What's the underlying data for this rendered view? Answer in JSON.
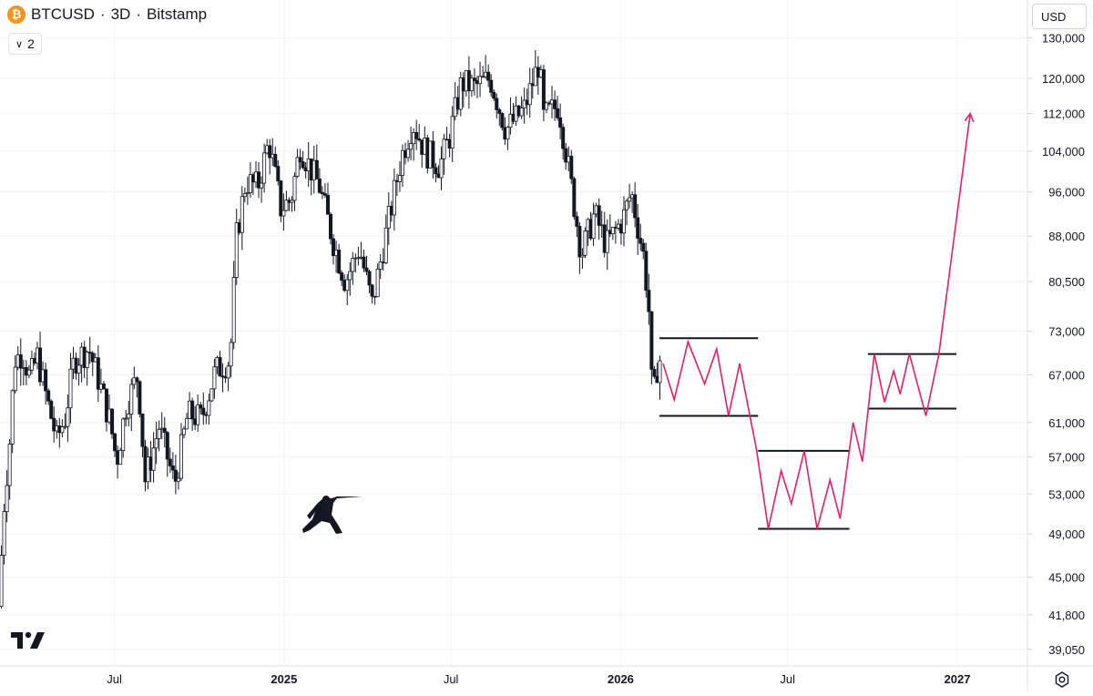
{
  "header": {
    "symbol": "BTCUSD",
    "interval": "3D",
    "exchange": "Bitstamp",
    "separator": "·",
    "coin_glyph": "₿",
    "coin_color": "#f7931a"
  },
  "legend_toggle": {
    "count": "2",
    "icon": "chevron-down-icon"
  },
  "currency": {
    "label": "USD"
  },
  "icons": {
    "logo": "tradingview-logo-icon",
    "settings": "settings-gear-icon",
    "drawing": "fencer-silhouette-icon"
  },
  "colors": {
    "candles": "#131722",
    "projection": "#e91e63",
    "levels": "#131722",
    "grid": "#f0f3fa"
  },
  "chart_data": {
    "type": "candlestick",
    "price_scale": "log",
    "y_tick_labels": [
      "130,000",
      "120,000",
      "112,000",
      "104,000",
      "96,000",
      "88,000",
      "80,500",
      "73,000",
      "67,000",
      "61,000",
      "57,000",
      "53,000",
      "49,000",
      "45,000",
      "41,800",
      "39,050"
    ],
    "y_ticks": [
      130000,
      120000,
      112000,
      104000,
      96000,
      88000,
      80500,
      73000,
      67000,
      61000,
      57000,
      53000,
      49000,
      45000,
      41800,
      39050
    ],
    "ylim": [
      37800,
      140000
    ],
    "x_tick_labels": [
      "Jul",
      "2025",
      "Jul",
      "2026",
      "Jul",
      "2027"
    ],
    "x_ticks": [
      "2024-07-01",
      "2025-01-01",
      "2025-07-01",
      "2026-01-01",
      "2026-07-01",
      "2027-01-01"
    ],
    "x_tick_bold": [
      false,
      true,
      false,
      true,
      false,
      true
    ],
    "xlim": [
      "2024-02-28",
      "2027-03-18"
    ],
    "price_path": [
      [
        "2024-02-28",
        42500
      ],
      [
        "2024-03-05",
        52000
      ],
      [
        "2024-03-12",
        60000
      ],
      [
        "2024-03-16",
        69000
      ],
      [
        "2024-03-25",
        70000
      ],
      [
        "2024-04-02",
        66500
      ],
      [
        "2024-04-10",
        69500
      ],
      [
        "2024-04-20",
        64000
      ],
      [
        "2024-05-01",
        59000
      ],
      [
        "2024-05-10",
        61500
      ],
      [
        "2024-05-20",
        69000
      ],
      [
        "2024-06-05",
        70500
      ],
      [
        "2024-06-15",
        66500
      ],
      [
        "2024-06-28",
        61000
      ],
      [
        "2024-07-05",
        56500
      ],
      [
        "2024-07-15",
        63000
      ],
      [
        "2024-07-28",
        67000
      ],
      [
        "2024-08-05",
        54500
      ],
      [
        "2024-08-20",
        60500
      ],
      [
        "2024-09-06",
        54000
      ],
      [
        "2024-09-20",
        62000
      ],
      [
        "2024-10-05",
        61500
      ],
      [
        "2024-10-20",
        67500
      ],
      [
        "2024-11-05",
        69000
      ],
      [
        "2024-11-12",
        88000
      ],
      [
        "2024-11-22",
        98000
      ],
      [
        "2024-12-05",
        97000
      ],
      [
        "2024-12-17",
        106000
      ],
      [
        "2024-12-30",
        93000
      ],
      [
        "2025-01-10",
        94500
      ],
      [
        "2025-01-20",
        105000
      ],
      [
        "2025-01-30",
        101000
      ],
      [
        "2025-02-10",
        97000
      ],
      [
        "2025-02-25",
        87000
      ],
      [
        "2025-03-10",
        80500
      ],
      [
        "2025-03-25",
        86000
      ],
      [
        "2025-04-08",
        77000
      ],
      [
        "2025-04-20",
        86000
      ],
      [
        "2025-05-10",
        103000
      ],
      [
        "2025-05-22",
        110000
      ],
      [
        "2025-06-05",
        104000
      ],
      [
        "2025-06-20",
        101000
      ],
      [
        "2025-07-01",
        107000
      ],
      [
        "2025-07-14",
        119000
      ],
      [
        "2025-07-28",
        118000
      ],
      [
        "2025-08-14",
        120000
      ],
      [
        "2025-08-31",
        108500
      ],
      [
        "2025-09-20",
        113000
      ],
      [
        "2025-10-06",
        124000
      ],
      [
        "2025-10-11",
        111000
      ],
      [
        "2025-10-27",
        114000
      ],
      [
        "2025-11-05",
        103000
      ],
      [
        "2025-11-21",
        85000
      ],
      [
        "2025-12-05",
        92000
      ],
      [
        "2025-12-18",
        86500
      ],
      [
        "2026-01-05",
        91000
      ],
      [
        "2026-01-14",
        96000
      ],
      [
        "2026-01-28",
        84000
      ],
      [
        "2026-02-02",
        76000
      ],
      [
        "2026-02-06",
        63000
      ],
      [
        "2026-02-12",
        69000
      ]
    ],
    "projection": [
      [
        "2026-02-16",
        68500
      ],
      [
        "2026-02-28",
        63800
      ],
      [
        "2026-03-15",
        71500
      ],
      [
        "2026-04-02",
        65800
      ],
      [
        "2026-04-15",
        70500
      ],
      [
        "2026-04-28",
        61800
      ],
      [
        "2026-05-10",
        68500
      ],
      [
        "2026-05-28",
        58000
      ],
      [
        "2026-06-10",
        49500
      ],
      [
        "2026-06-24",
        55500
      ],
      [
        "2026-07-05",
        52000
      ],
      [
        "2026-07-19",
        57700
      ],
      [
        "2026-08-02",
        49500
      ],
      [
        "2026-08-16",
        54500
      ],
      [
        "2026-08-27",
        50500
      ],
      [
        "2026-09-10",
        61000
      ],
      [
        "2026-09-20",
        56500
      ],
      [
        "2026-10-03",
        69800
      ],
      [
        "2026-10-14",
        63500
      ],
      [
        "2026-10-24",
        67500
      ],
      [
        "2026-10-31",
        64500
      ],
      [
        "2026-11-10",
        69800
      ],
      [
        "2026-11-28",
        61800
      ],
      [
        "2026-12-12",
        69800
      ],
      [
        "2027-01-15",
        112000
      ]
    ],
    "levels": [
      {
        "from": "2026-02-12",
        "to": "2026-05-30",
        "price": 72000
      },
      {
        "from": "2026-02-12",
        "to": "2026-05-30",
        "price": 61800
      },
      {
        "from": "2026-05-30",
        "to": "2026-09-06",
        "price": 57700
      },
      {
        "from": "2026-05-30",
        "to": "2026-09-06",
        "price": 49500
      },
      {
        "from": "2026-09-26",
        "to": "2026-12-31",
        "price": 69800
      },
      {
        "from": "2026-09-26",
        "to": "2026-12-31",
        "price": 62700
      }
    ]
  }
}
